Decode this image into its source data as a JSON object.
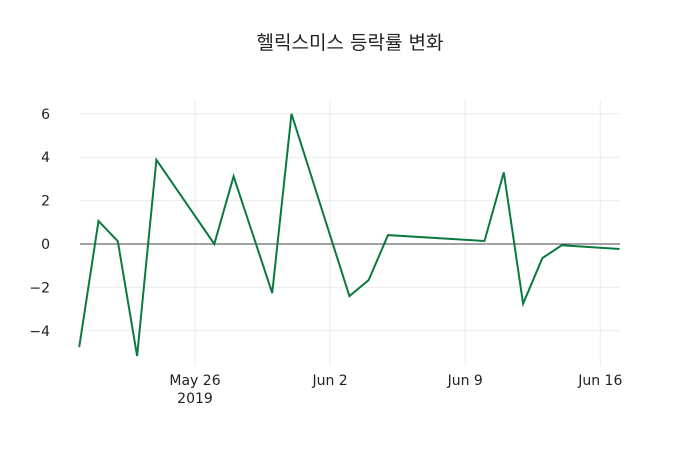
{
  "chart_data": {
    "type": "line",
    "title": "헬릭스미스 등락률 변화",
    "xlabel": "",
    "ylabel": "",
    "ylim": [
      -5.5,
      6.6
    ],
    "grid": true,
    "legend": null,
    "x_tick_labels": [
      "May 26\n2019",
      "Jun 2",
      "Jun 9",
      "Jun 16"
    ],
    "y_tick_labels": [
      "−4",
      "−2",
      "0",
      "2",
      "4",
      "6"
    ],
    "line_color": "#0b7a3e",
    "series": [
      {
        "name": "등락률",
        "x": [
          "2019-05-20",
          "2019-05-21",
          "2019-05-22",
          "2019-05-23",
          "2019-05-24",
          "2019-05-27",
          "2019-05-28",
          "2019-05-30",
          "2019-05-31",
          "2019-06-03",
          "2019-06-04",
          "2019-06-05",
          "2019-06-10",
          "2019-06-11",
          "2019-06-12",
          "2019-06-13",
          "2019-06-14",
          "2019-06-17"
        ],
        "values": [
          -4.75,
          1.06,
          0.13,
          -5.16,
          3.88,
          0.0,
          3.12,
          -2.26,
          6.0,
          -2.4,
          -1.66,
          0.41,
          0.14,
          3.3,
          -2.75,
          -0.65,
          -0.06,
          -0.23
        ]
      }
    ]
  }
}
